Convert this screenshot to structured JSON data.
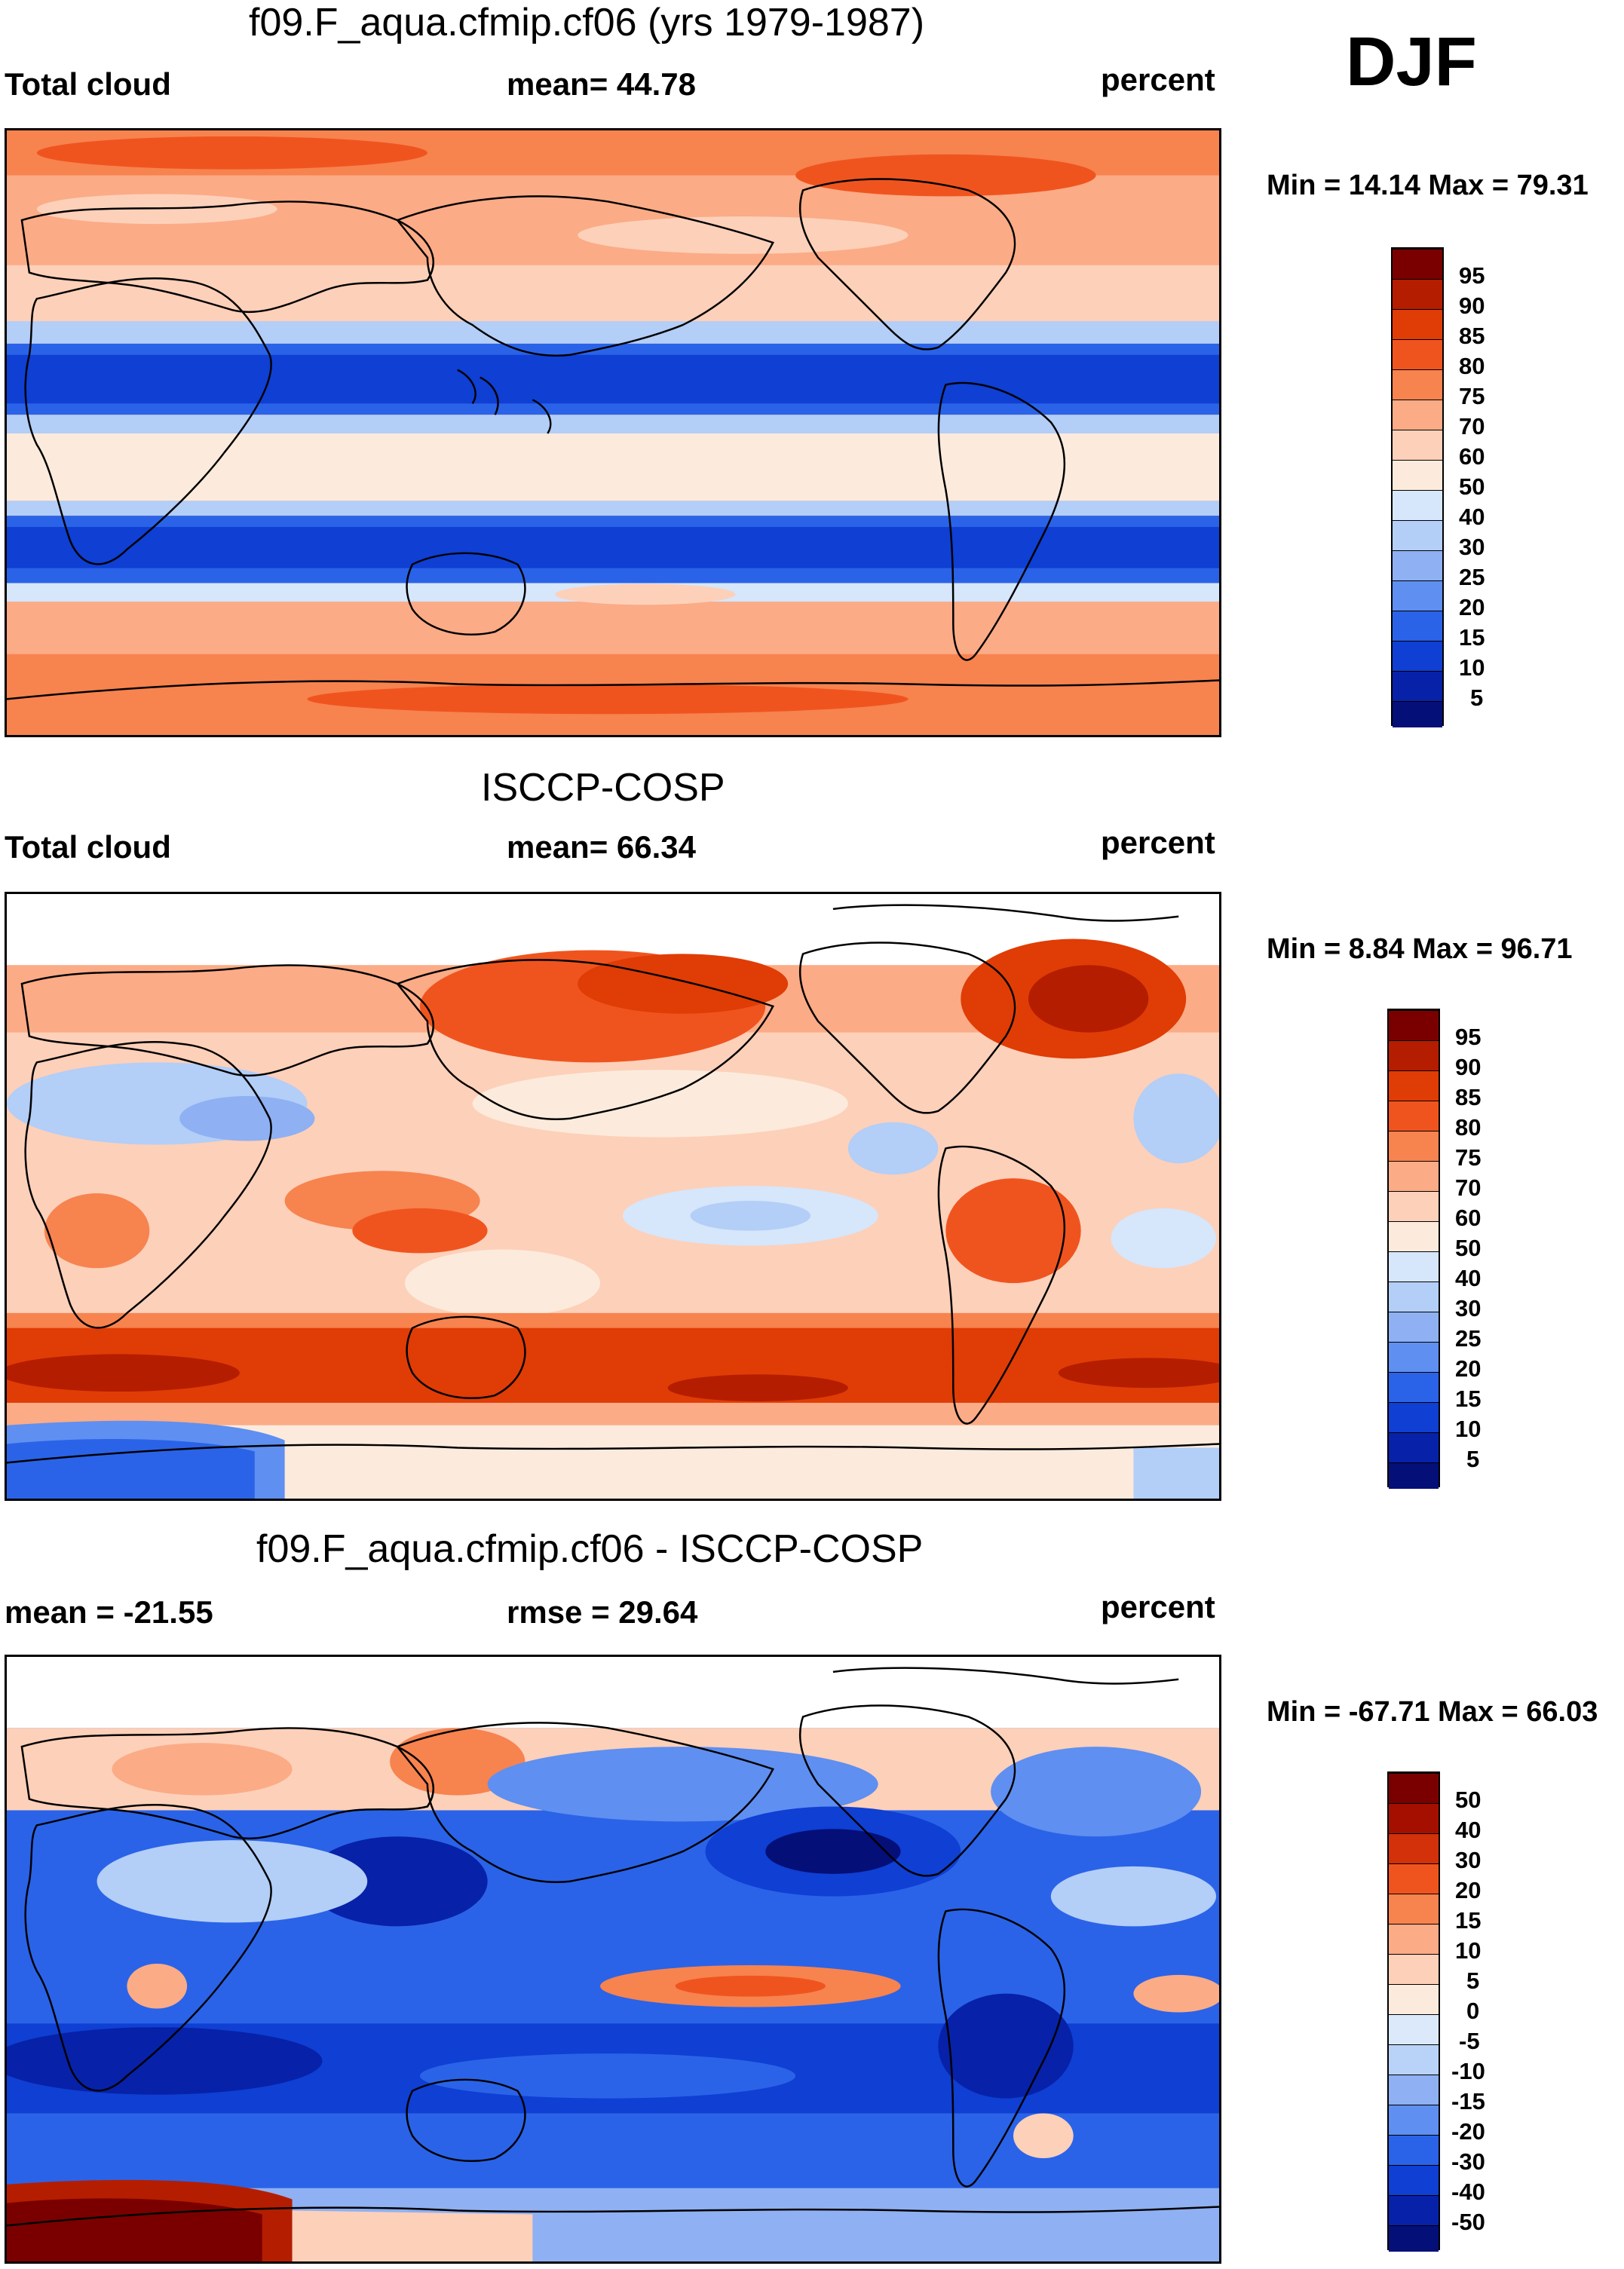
{
  "season": "DJF",
  "panels": [
    {
      "title": "f09.F_aqua.cfmip.cf06 (yrs 1979-1987)",
      "left_label": "Total cloud",
      "center_label": "mean=  44.78",
      "right_label": "percent",
      "minmax": "Min =  14.14 Max =  79.31",
      "colorbar": [
        "95",
        "90",
        "85",
        "80",
        "75",
        "70",
        "60",
        "50",
        "40",
        "30",
        "25",
        "20",
        "15",
        "10",
        "5"
      ]
    },
    {
      "title": "ISCCP-COSP",
      "left_label": "Total cloud",
      "center_label": "mean=  66.34",
      "right_label": "percent",
      "minmax": "Min =   8.84 Max =  96.71",
      "colorbar": [
        "95",
        "90",
        "85",
        "80",
        "75",
        "70",
        "60",
        "50",
        "40",
        "30",
        "25",
        "20",
        "15",
        "10",
        "5"
      ]
    },
    {
      "title": "f09.F_aqua.cfmip.cf06 - ISCCP-COSP",
      "left_label": "mean = -21.55",
      "center_label": "rmse =  29.64",
      "right_label": "percent",
      "minmax": "Min = -67.71 Max =  66.03",
      "colorbar": [
        "50",
        "40",
        "30",
        "20",
        "15",
        "10",
        "5",
        "0",
        "-5",
        "-10",
        "-15",
        "-20",
        "-30",
        "-40",
        "-50"
      ]
    }
  ],
  "colors": {
    "abs_scale": [
      "#7a0000",
      "#b51d00",
      "#e03c05",
      "#f0541e",
      "#f7834f",
      "#fbab86",
      "#fdd0b9",
      "#fcebdc",
      "#d6e6fb",
      "#b3cef7",
      "#8fb0f2",
      "#5f8ff0",
      "#2a63e8",
      "#0f3fd3",
      "#0721a8",
      "#040f78"
    ],
    "diff_scale": [
      "#7a0000",
      "#a40f00",
      "#d2310a",
      "#f0541e",
      "#f7834f",
      "#fbab86",
      "#fdd0b9",
      "#fcebdc",
      "#dbe9fb",
      "#b9d3f8",
      "#8fb0f2",
      "#5f8ff0",
      "#2a63e8",
      "#0f3fd3",
      "#0721a8",
      "#040f78"
    ]
  }
}
